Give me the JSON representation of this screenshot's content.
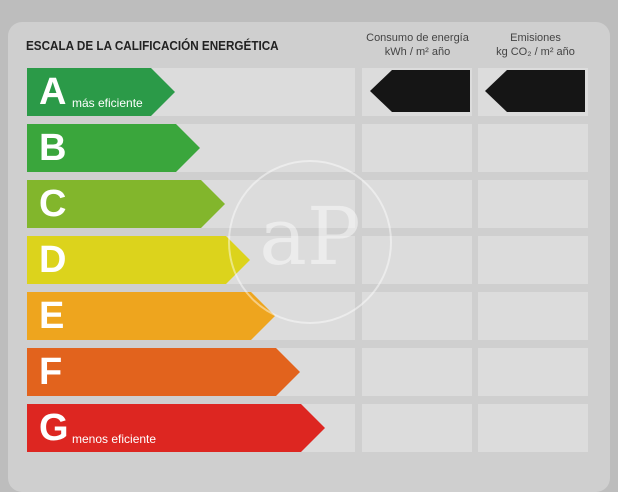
{
  "title": "ESCALA DE LA CALIFICACIÓN ENERGÉTICA",
  "columns": {
    "consumo_line1": "Consumo de energía",
    "consumo_line2": "kWh / m² año",
    "emisiones_line1": "Emisiones",
    "emisiones_line2": "kg CO₂ / m² año"
  },
  "ratings": [
    {
      "letter": "A",
      "label": "más eficiente",
      "color": "#2b9a48"
    },
    {
      "letter": "B",
      "label": "",
      "color": "#3aa63c"
    },
    {
      "letter": "C",
      "label": "",
      "color": "#82b62c"
    },
    {
      "letter": "D",
      "label": "",
      "color": "#dcd31c"
    },
    {
      "letter": "E",
      "label": "",
      "color": "#eea51e"
    },
    {
      "letter": "F",
      "label": "",
      "color": "#e2631d"
    },
    {
      "letter": "G",
      "label": "menos eficiente",
      "color": "#dd2621"
    }
  ],
  "indicators": {
    "consumo_rating": "A",
    "emisiones_rating": "A",
    "value_shown": ""
  },
  "watermark": "aP"
}
